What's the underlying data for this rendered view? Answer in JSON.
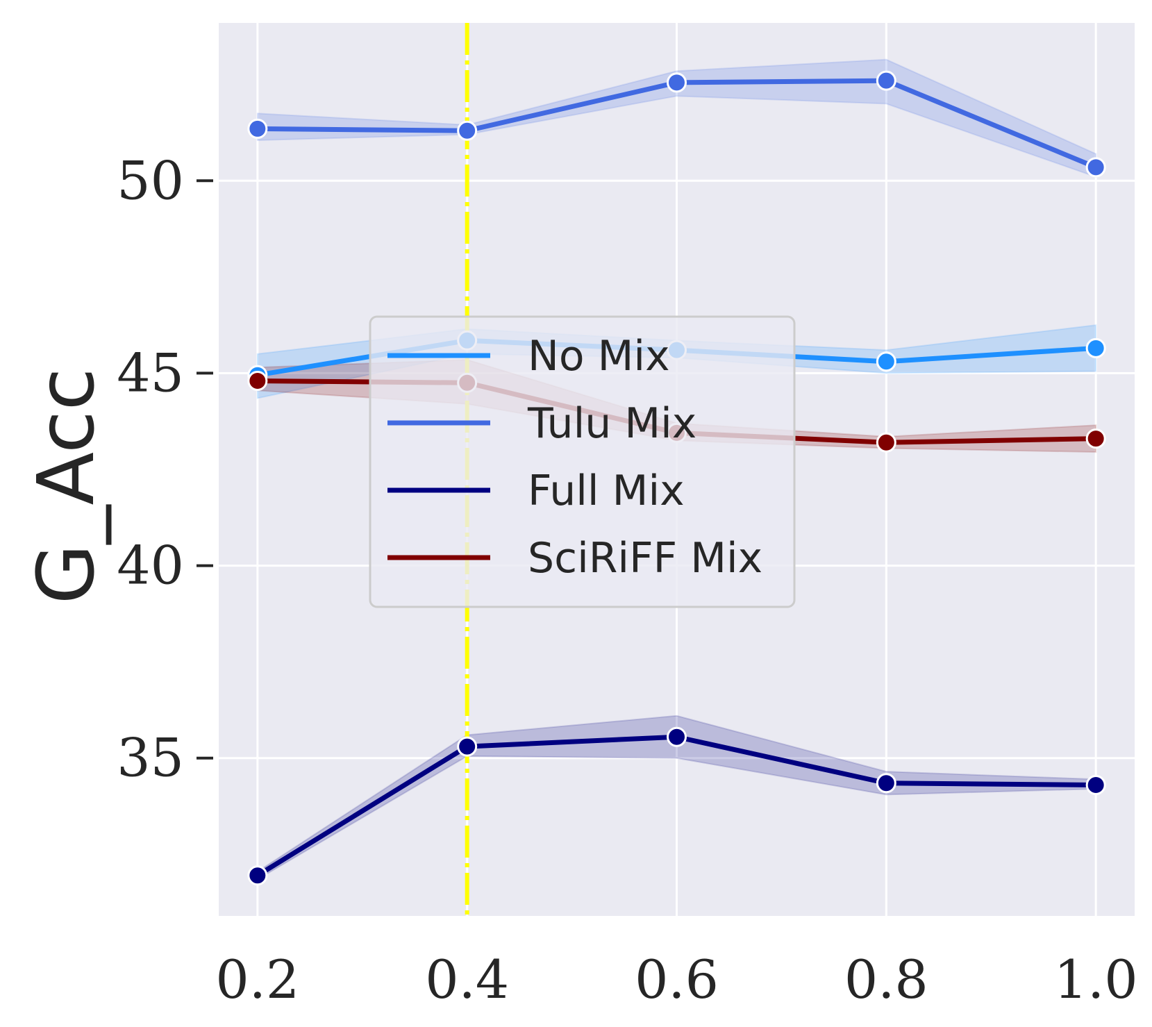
{
  "chart_data": {
    "type": "line",
    "title": "",
    "xlabel": "",
    "ylabel": "G_Acc",
    "x": [
      0.2,
      0.4,
      0.6,
      0.8,
      1.0
    ],
    "xticks": [
      "0.2",
      "0.4",
      "0.6",
      "0.8",
      "1.0"
    ],
    "yticks": [
      "35",
      "40",
      "45",
      "50"
    ],
    "ylim": [
      30.9,
      54.1
    ],
    "xlim": [
      0.163,
      1.037
    ],
    "grid": true,
    "legend_position": "center",
    "vline": {
      "x": 0.4,
      "color": "#ffff00",
      "style": "dash-dot"
    },
    "series": [
      {
        "name": "No Mix",
        "color": "#1e90ff",
        "values": [
          44.95,
          45.85,
          45.6,
          45.3,
          45.65
        ],
        "lower": [
          44.35,
          45.5,
          45.4,
          45.0,
          45.05
        ],
        "upper": [
          45.5,
          46.15,
          45.85,
          45.6,
          46.25
        ]
      },
      {
        "name": "Tulu Mix",
        "color": "#4169e1",
        "values": [
          51.35,
          51.3,
          52.55,
          52.6,
          50.35
        ],
        "lower": [
          51.05,
          51.2,
          52.2,
          52.0,
          50.1
        ],
        "upper": [
          51.75,
          51.45,
          52.85,
          53.15,
          50.7
        ]
      },
      {
        "name": "Full Mix",
        "color": "#000080",
        "values": [
          31.95,
          35.3,
          35.55,
          34.35,
          34.3
        ],
        "lower": [
          31.85,
          35.05,
          35.0,
          34.05,
          34.2
        ],
        "upper": [
          32.05,
          35.6,
          36.1,
          34.65,
          34.45
        ]
      },
      {
        "name": "SciRiFF Mix",
        "color": "#800000",
        "values": [
          44.8,
          44.75,
          43.45,
          43.2,
          43.3
        ],
        "lower": [
          44.55,
          44.2,
          43.25,
          43.05,
          42.95
        ],
        "upper": [
          45.15,
          45.35,
          43.7,
          43.35,
          43.65
        ]
      }
    ]
  }
}
